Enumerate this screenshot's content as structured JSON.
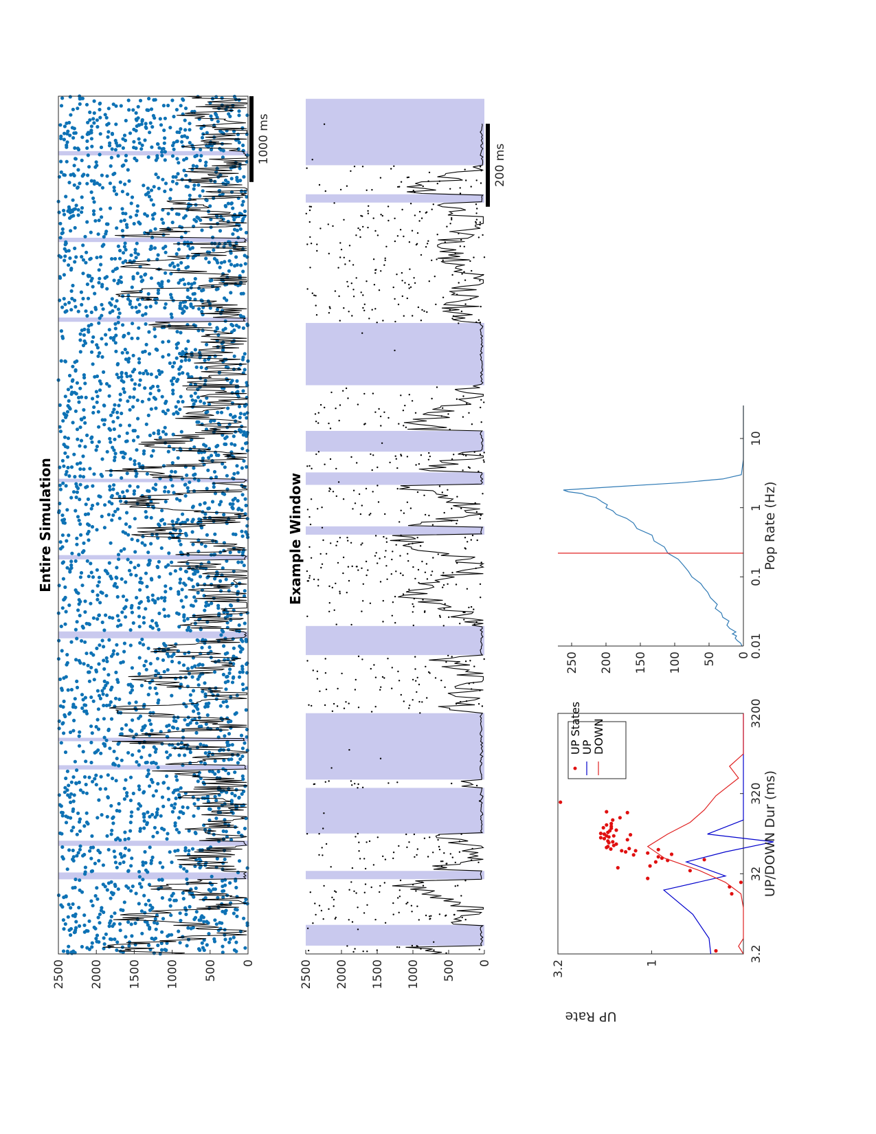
{
  "page": {
    "orientation": "rotated 90° counter-clockwise"
  },
  "colors": {
    "up_band": "#c9c9ee",
    "raster_full": "#0e72b5",
    "raster_window": "#000000",
    "rate_trace": "#000000",
    "up_line": "#0000cc",
    "down_line": "#e02020",
    "scatter": "#e01010",
    "pop_rate_line": "#2f7ab5",
    "threshold": "#e02020"
  },
  "chart_data": [
    {
      "id": "entire",
      "type": "scatter",
      "title": "Entire Simulation",
      "ylim": [
        0,
        2500
      ],
      "yticks": [
        "0",
        "500",
        "1000",
        "1500",
        "2000",
        "2500"
      ],
      "scalebar_label": "1000 ms",
      "scalebar_ms": 1000,
      "x_range_ms": [
        0,
        10000
      ],
      "up_bands_ms": [
        [
          870,
          950
        ],
        [
          1260,
          1320
        ],
        [
          2150,
          2200
        ],
        [
          2480,
          2520
        ],
        [
          3680,
          3760
        ],
        [
          4600,
          4650
        ],
        [
          5500,
          5540
        ],
        [
          7370,
          7420
        ],
        [
          8300,
          8350
        ],
        [
          9310,
          9360
        ]
      ],
      "series": [
        {
          "type": "raster"
        },
        {
          "type": "rate"
        }
      ]
    },
    {
      "id": "window",
      "type": "scatter",
      "title": "Example Window",
      "ylim": [
        0,
        2500
      ],
      "yticks": [
        "0",
        "500",
        "1000",
        "1500",
        "2000",
        "2500"
      ],
      "scalebar_label": "200 ms",
      "scalebar_ms": 200,
      "x_range_ms": [
        0,
        2000
      ],
      "up_bands_ms": [
        [
          20,
          70
        ],
        [
          180,
          200
        ],
        [
          290,
          400
        ],
        [
          420,
          580
        ],
        [
          720,
          790
        ],
        [
          1010,
          1030
        ],
        [
          1130,
          1160
        ],
        [
          1210,
          1260
        ],
        [
          1370,
          1520
        ],
        [
          1810,
          1830
        ],
        [
          1900,
          2060
        ]
      ],
      "series": [
        {
          "type": "raster"
        },
        {
          "type": "rate"
        }
      ]
    },
    {
      "id": "updown",
      "type": "line",
      "xlabel": "UP/DOWN Dur (ms)",
      "ylabel": "UP Rate",
      "x_log": true,
      "xlim": [
        3.2,
        3200
      ],
      "xticks": [
        {
          "v": 3.2,
          "label": "3.2"
        },
        {
          "v": 32,
          "label": "32"
        },
        {
          "v": 320,
          "label": "320"
        },
        {
          "v": 3200,
          "label": "3200"
        }
      ],
      "y_log": true,
      "ylim": [
        0.32,
        3.2
      ],
      "yticks": [
        {
          "v": 1,
          "label": "1"
        },
        {
          "v": 3.2,
          "label": "3.2"
        }
      ],
      "legend": {
        "position": "top-right",
        "entries": [
          "UP States",
          "UP",
          "DOWN"
        ]
      },
      "series": [
        {
          "name": "UP States",
          "kind": "scatter",
          "x": [
            3.5,
            18,
            22,
            25,
            28,
            35,
            38,
            40,
            45,
            47,
            48,
            50,
            52,
            55,
            56,
            58,
            60,
            62,
            62,
            64,
            65,
            66,
            68,
            70,
            72,
            75,
            78,
            80,
            82,
            85,
            88,
            90,
            92,
            95,
            95,
            98,
            100,
            102,
            105,
            110,
            112,
            118,
            120,
            125,
            130,
            135,
            150,
            160,
            185,
            190,
            250
          ],
          "y": [
            0.45,
            0.37,
            0.38,
            0.33,
            1.05,
            0.62,
            1.52,
            1.02,
            0.95,
            0.82,
            0.52,
            0.88,
            0.92,
            1.25,
            0.78,
            1.05,
            1.38,
            1.45,
            1.22,
            0.92,
            1.66,
            1.32,
            1.75,
            1.72,
            1.6,
            1.55,
            1.7,
            1.62,
            1.72,
            1.35,
            1.8,
            1.88,
            1.7,
            1.6,
            1.75,
            1.3,
            1.8,
            1.88,
            1.72,
            1.68,
            1.55,
            1.65,
            1.82,
            1.65,
            1.75,
            1.65,
            1.62,
            1.48,
            1.35,
            1.75,
            3.1
          ]
        },
        {
          "name": "UP",
          "kind": "line",
          "x": [
            3.2,
            5,
            10,
            20,
            30,
            45,
            60,
            80,
            100,
            150,
            200,
            250,
            300,
            1000,
            3200
          ],
          "y": [
            0.48,
            0.49,
            0.6,
            0.86,
            0.4,
            0.65,
            0.4,
            0.22,
            0.5,
            0.32,
            0.32,
            0.32,
            0.32,
            0.32,
            0.32
          ]
        },
        {
          "name": "DOWN",
          "kind": "line",
          "x": [
            3.2,
            4,
            5,
            8,
            12,
            18,
            25,
            35,
            50,
            70,
            100,
            140,
            200,
            300,
            500,
            700,
            1000,
            1500,
            2000,
            3200
          ],
          "y": [
            0.32,
            0.34,
            0.32,
            0.32,
            0.32,
            0.33,
            0.4,
            0.55,
            0.85,
            1.05,
            0.82,
            0.62,
            0.52,
            0.45,
            0.34,
            0.38,
            0.32,
            0.32,
            0.32,
            0.32
          ]
        }
      ]
    },
    {
      "id": "poprate",
      "type": "line",
      "xlabel": "Pop Rate (Hz)",
      "x_log": true,
      "xlim": [
        0.01,
        30
      ],
      "xticks": [
        {
          "v": 0.01,
          "label": "0.01"
        },
        {
          "v": 0.1,
          "label": "0.1"
        },
        {
          "v": 1,
          "label": "1"
        },
        {
          "v": 10,
          "label": "10"
        }
      ],
      "ylim": [
        0,
        270
      ],
      "yticks": [
        {
          "v": 0,
          "label": "0"
        },
        {
          "v": 50,
          "label": "50"
        },
        {
          "v": 100,
          "label": "100"
        },
        {
          "v": 150,
          "label": "150"
        },
        {
          "v": 200,
          "label": "200"
        },
        {
          "v": 250,
          "label": "250"
        }
      ],
      "threshold_x": 0.22,
      "series": [
        {
          "name": "population",
          "kind": "line",
          "x": [
            0.01,
            0.011,
            0.012,
            0.013,
            0.014,
            0.015,
            0.016,
            0.018,
            0.02,
            0.023,
            0.026,
            0.03,
            0.035,
            0.04,
            0.05,
            0.06,
            0.07,
            0.08,
            0.1,
            0.12,
            0.15,
            0.18,
            0.22,
            0.27,
            0.33,
            0.4,
            0.5,
            0.6,
            0.7,
            0.8,
            0.9,
            1.0,
            1.1,
            1.2,
            1.3,
            1.4,
            1.5,
            1.6,
            1.7,
            1.8,
            2.0,
            2.3,
            2.6,
            3.0,
            5,
            10,
            30
          ],
          "y": [
            2,
            4,
            9,
            12,
            10,
            16,
            11,
            20,
            24,
            21,
            30,
            32,
            41,
            38,
            48,
            52,
            58,
            62,
            75,
            80,
            88,
            95,
            110,
            115,
            130,
            133,
            155,
            160,
            170,
            185,
            190,
            200,
            198,
            205,
            210,
            215,
            228,
            235,
            255,
            262,
            190,
            90,
            30,
            3,
            0,
            0,
            0
          ]
        }
      ]
    }
  ]
}
